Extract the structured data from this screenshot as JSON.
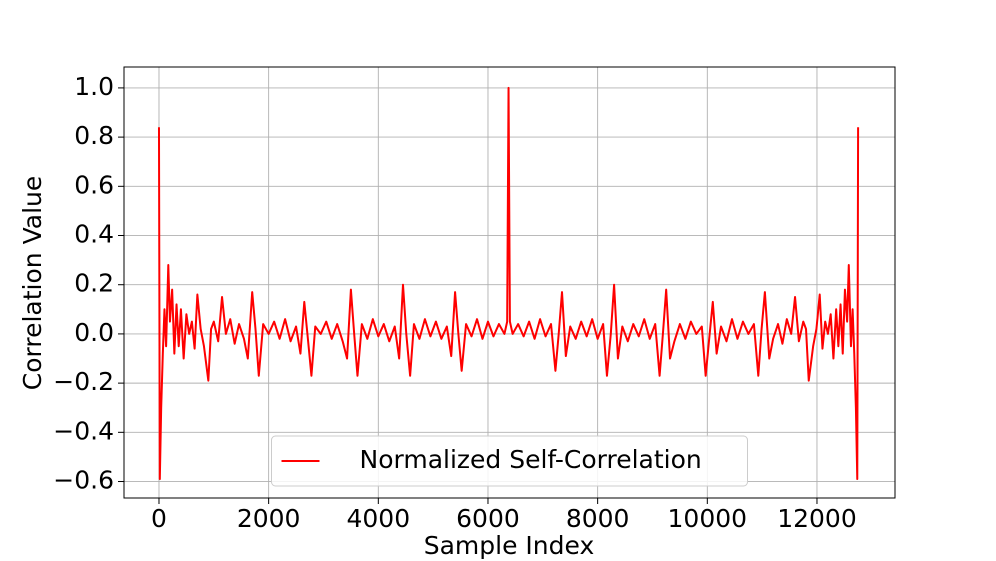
{
  "chart_data": {
    "type": "line",
    "xlabel": "Sample Index",
    "ylabel": "Correlation Value",
    "x": [
      0,
      15,
      40,
      70,
      100,
      130,
      170,
      200,
      240,
      280,
      320,
      360,
      400,
      450,
      500,
      550,
      600,
      650,
      700,
      760,
      820,
      900,
      950,
      1000,
      1080,
      1150,
      1220,
      1300,
      1380,
      1460,
      1550,
      1620,
      1700,
      1760,
      1820,
      1900,
      2000,
      2100,
      2200,
      2300,
      2400,
      2500,
      2580,
      2650,
      2720,
      2780,
      2850,
      2950,
      3050,
      3150,
      3250,
      3350,
      3430,
      3500,
      3560,
      3620,
      3700,
      3800,
      3900,
      4000,
      4100,
      4200,
      4300,
      4380,
      4450,
      4510,
      4580,
      4650,
      4750,
      4850,
      4950,
      5050,
      5150,
      5250,
      5330,
      5400,
      5460,
      5520,
      5600,
      5700,
      5800,
      5900,
      6000,
      6100,
      6200,
      6300,
      6350,
      6375,
      6400,
      6450,
      6550,
      6650,
      6750,
      6850,
      6950,
      7050,
      7150,
      7230,
      7290,
      7350,
      7420,
      7500,
      7600,
      7700,
      7800,
      7900,
      8000,
      8100,
      8170,
      8240,
      8300,
      8370,
      8450,
      8550,
      8650,
      8750,
      8850,
      8950,
      9050,
      9130,
      9190,
      9250,
      9320,
      9400,
      9500,
      9600,
      9700,
      9800,
      9900,
      9970,
      10030,
      10100,
      10170,
      10250,
      10350,
      10450,
      10550,
      10650,
      10750,
      10850,
      10930,
      10990,
      11050,
      11130,
      11200,
      11290,
      11370,
      11450,
      11530,
      11600,
      11670,
      11750,
      11800,
      11850,
      11930,
      11990,
      12050,
      12100,
      12150,
      12200,
      12250,
      12300,
      12350,
      12390,
      12430,
      12470,
      12510,
      12550,
      12580,
      12620,
      12650,
      12680,
      12710,
      12735,
      12750
    ],
    "series": [
      {
        "name": "Normalized Self-Correlation",
        "color": "#ff0000",
        "values": [
          0.84,
          -0.59,
          -0.3,
          -0.08,
          0.1,
          -0.05,
          0.28,
          0.05,
          0.18,
          -0.08,
          0.12,
          -0.05,
          0.1,
          -0.1,
          0.08,
          0.0,
          0.05,
          -0.06,
          0.16,
          0.02,
          -0.05,
          -0.19,
          0.02,
          0.05,
          -0.03,
          0.15,
          0.0,
          0.06,
          -0.04,
          0.04,
          -0.02,
          -0.1,
          0.17,
          0.02,
          -0.17,
          0.04,
          0.0,
          0.05,
          -0.02,
          0.06,
          -0.03,
          0.03,
          -0.08,
          0.13,
          -0.03,
          -0.17,
          0.03,
          0.0,
          0.05,
          -0.02,
          0.04,
          -0.03,
          -0.1,
          0.18,
          0.0,
          -0.17,
          0.04,
          -0.02,
          0.06,
          -0.01,
          0.04,
          -0.03,
          0.03,
          -0.1,
          0.2,
          0.0,
          -0.17,
          0.04,
          -0.02,
          0.06,
          -0.01,
          0.05,
          -0.02,
          0.03,
          -0.09,
          0.17,
          0.0,
          -0.15,
          0.04,
          -0.01,
          0.06,
          -0.02,
          0.05,
          -0.01,
          0.04,
          0.0,
          0.05,
          1.0,
          0.05,
          0.0,
          0.04,
          -0.01,
          0.05,
          -0.02,
          0.06,
          -0.01,
          0.04,
          -0.15,
          0.0,
          0.17,
          -0.09,
          0.03,
          -0.02,
          0.05,
          -0.01,
          0.06,
          -0.02,
          0.04,
          -0.17,
          0.0,
          0.2,
          -0.1,
          0.03,
          -0.03,
          0.04,
          -0.01,
          0.06,
          -0.02,
          0.04,
          -0.17,
          0.0,
          0.18,
          -0.1,
          -0.03,
          0.04,
          -0.02,
          0.05,
          0.0,
          0.03,
          -0.17,
          -0.03,
          0.13,
          -0.08,
          0.03,
          -0.03,
          0.06,
          -0.02,
          0.05,
          0.0,
          0.04,
          -0.17,
          0.02,
          0.17,
          -0.1,
          -0.02,
          0.04,
          -0.04,
          0.06,
          0.0,
          0.15,
          -0.03,
          0.05,
          0.02,
          -0.19,
          -0.05,
          0.02,
          0.16,
          -0.06,
          0.05,
          0.0,
          0.08,
          -0.1,
          0.1,
          -0.05,
          0.12,
          -0.08,
          0.18,
          0.05,
          0.28,
          -0.05,
          0.1,
          -0.08,
          -0.3,
          -0.59,
          0.84
        ]
      }
    ],
    "xlim": [
      -638,
      13423
    ],
    "xticks": [
      0,
      2000,
      4000,
      6000,
      8000,
      10000,
      12000
    ],
    "ylim": [
      -0.667,
      1.085
    ],
    "yticks": [
      {
        "value": -0.6,
        "label": "−0.6"
      },
      {
        "value": -0.4,
        "label": "−0.4"
      },
      {
        "value": -0.2,
        "label": "−0.2"
      },
      {
        "value": 0.0,
        "label": "0.0"
      },
      0.2,
      0.4,
      0.6,
      0.8,
      {
        "value": 1.0,
        "label": "1.0"
      }
    ],
    "grid": true,
    "legend": "lower center"
  }
}
